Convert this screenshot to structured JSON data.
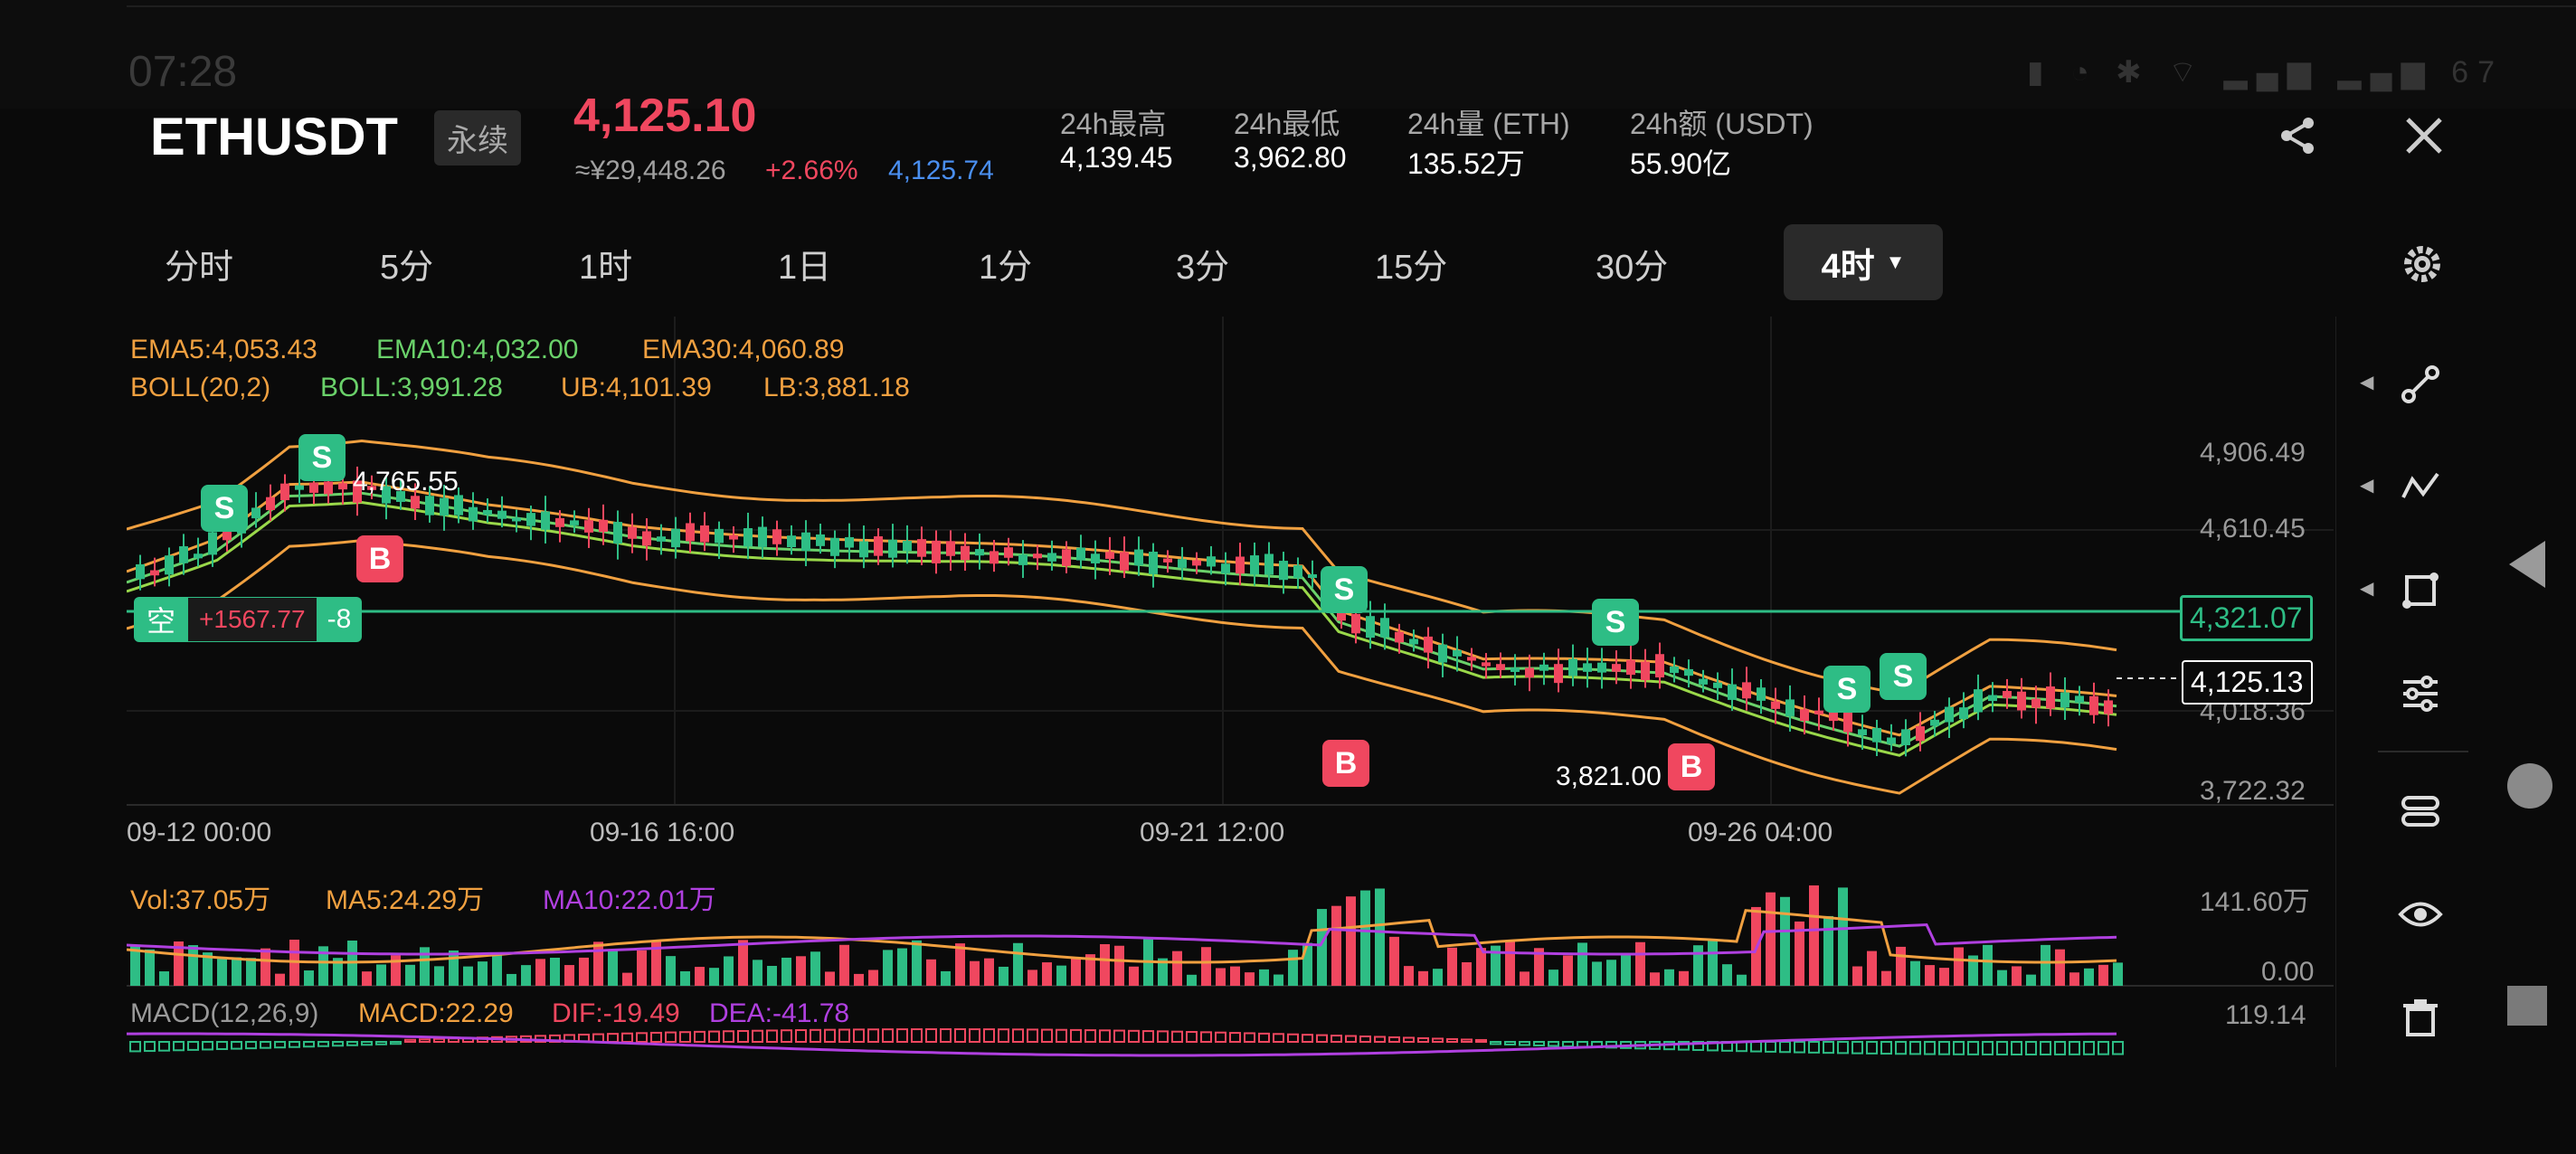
{
  "status_bar": {
    "time": "07:28",
    "battery": "67"
  },
  "header": {
    "symbol": "ETHUSDT",
    "contract_type": "永续",
    "last_price": "4,125.10",
    "cny_price": "≈¥29,448.26",
    "change_pct": "+2.66%",
    "mark_price": "4,125.74",
    "stats": [
      {
        "label": "24h最高",
        "value": "4,139.45"
      },
      {
        "label": "24h最低",
        "value": "3,962.80"
      },
      {
        "label": "24h量 (ETH)",
        "value": "135.52万"
      },
      {
        "label": "24h额 (USDT)",
        "value": "55.90亿"
      }
    ],
    "share_icon": "share-icon",
    "close_icon": "close-icon"
  },
  "timeframes": [
    "分时",
    "5分",
    "1时",
    "1日",
    "1分",
    "3分",
    "15分",
    "30分"
  ],
  "active_timeframe": "4时",
  "indicators": {
    "ema5": "EMA5:4,053.43",
    "ema10": "EMA10:4,032.00",
    "ema30": "EMA30:4,060.89",
    "boll": "BOLL(20,2)",
    "boll_mid": "BOLL:3,991.28",
    "ub": "UB:4,101.39",
    "lb": "LB:3,881.18"
  },
  "price_axis": [
    "4,906.49",
    "4,610.45",
    "4,018.36",
    "3,722.32"
  ],
  "date_axis": [
    "09-12 00:00",
    "09-16 16:00",
    "09-21 12:00",
    "09-26 04:00"
  ],
  "annotations": {
    "high": "4,765.55",
    "low": "3,821.00"
  },
  "position": {
    "side": "空",
    "pnl": "+1567.77",
    "qty": "-8",
    "entry_price": "4,321.07"
  },
  "current_price_tag": "4,125.13",
  "volume": {
    "vol": "Vol:37.05万",
    "ma5": "MA5:24.29万",
    "ma10": "MA10:22.01万",
    "axis_top": "141.60万",
    "axis_bottom": "0.00"
  },
  "macd": {
    "label": "MACD(12,26,9)",
    "macd": "MACD:22.29",
    "dif": "DIF:-19.49",
    "dea": "DEA:-41.78",
    "axis_top": "119.14"
  },
  "tools": [
    "draw-line-icon",
    "trend-icon",
    "shape-icon",
    "settings-sliders-icon",
    "layers-icon",
    "eye-icon",
    "trash-icon"
  ],
  "colors": {
    "up": "#f0475f",
    "down": "#2ebd85",
    "ema_orange": "#f0a040",
    "ema_green": "#6ad16a",
    "mark_blue": "#4a8ff0",
    "purple": "#b040e0"
  }
}
